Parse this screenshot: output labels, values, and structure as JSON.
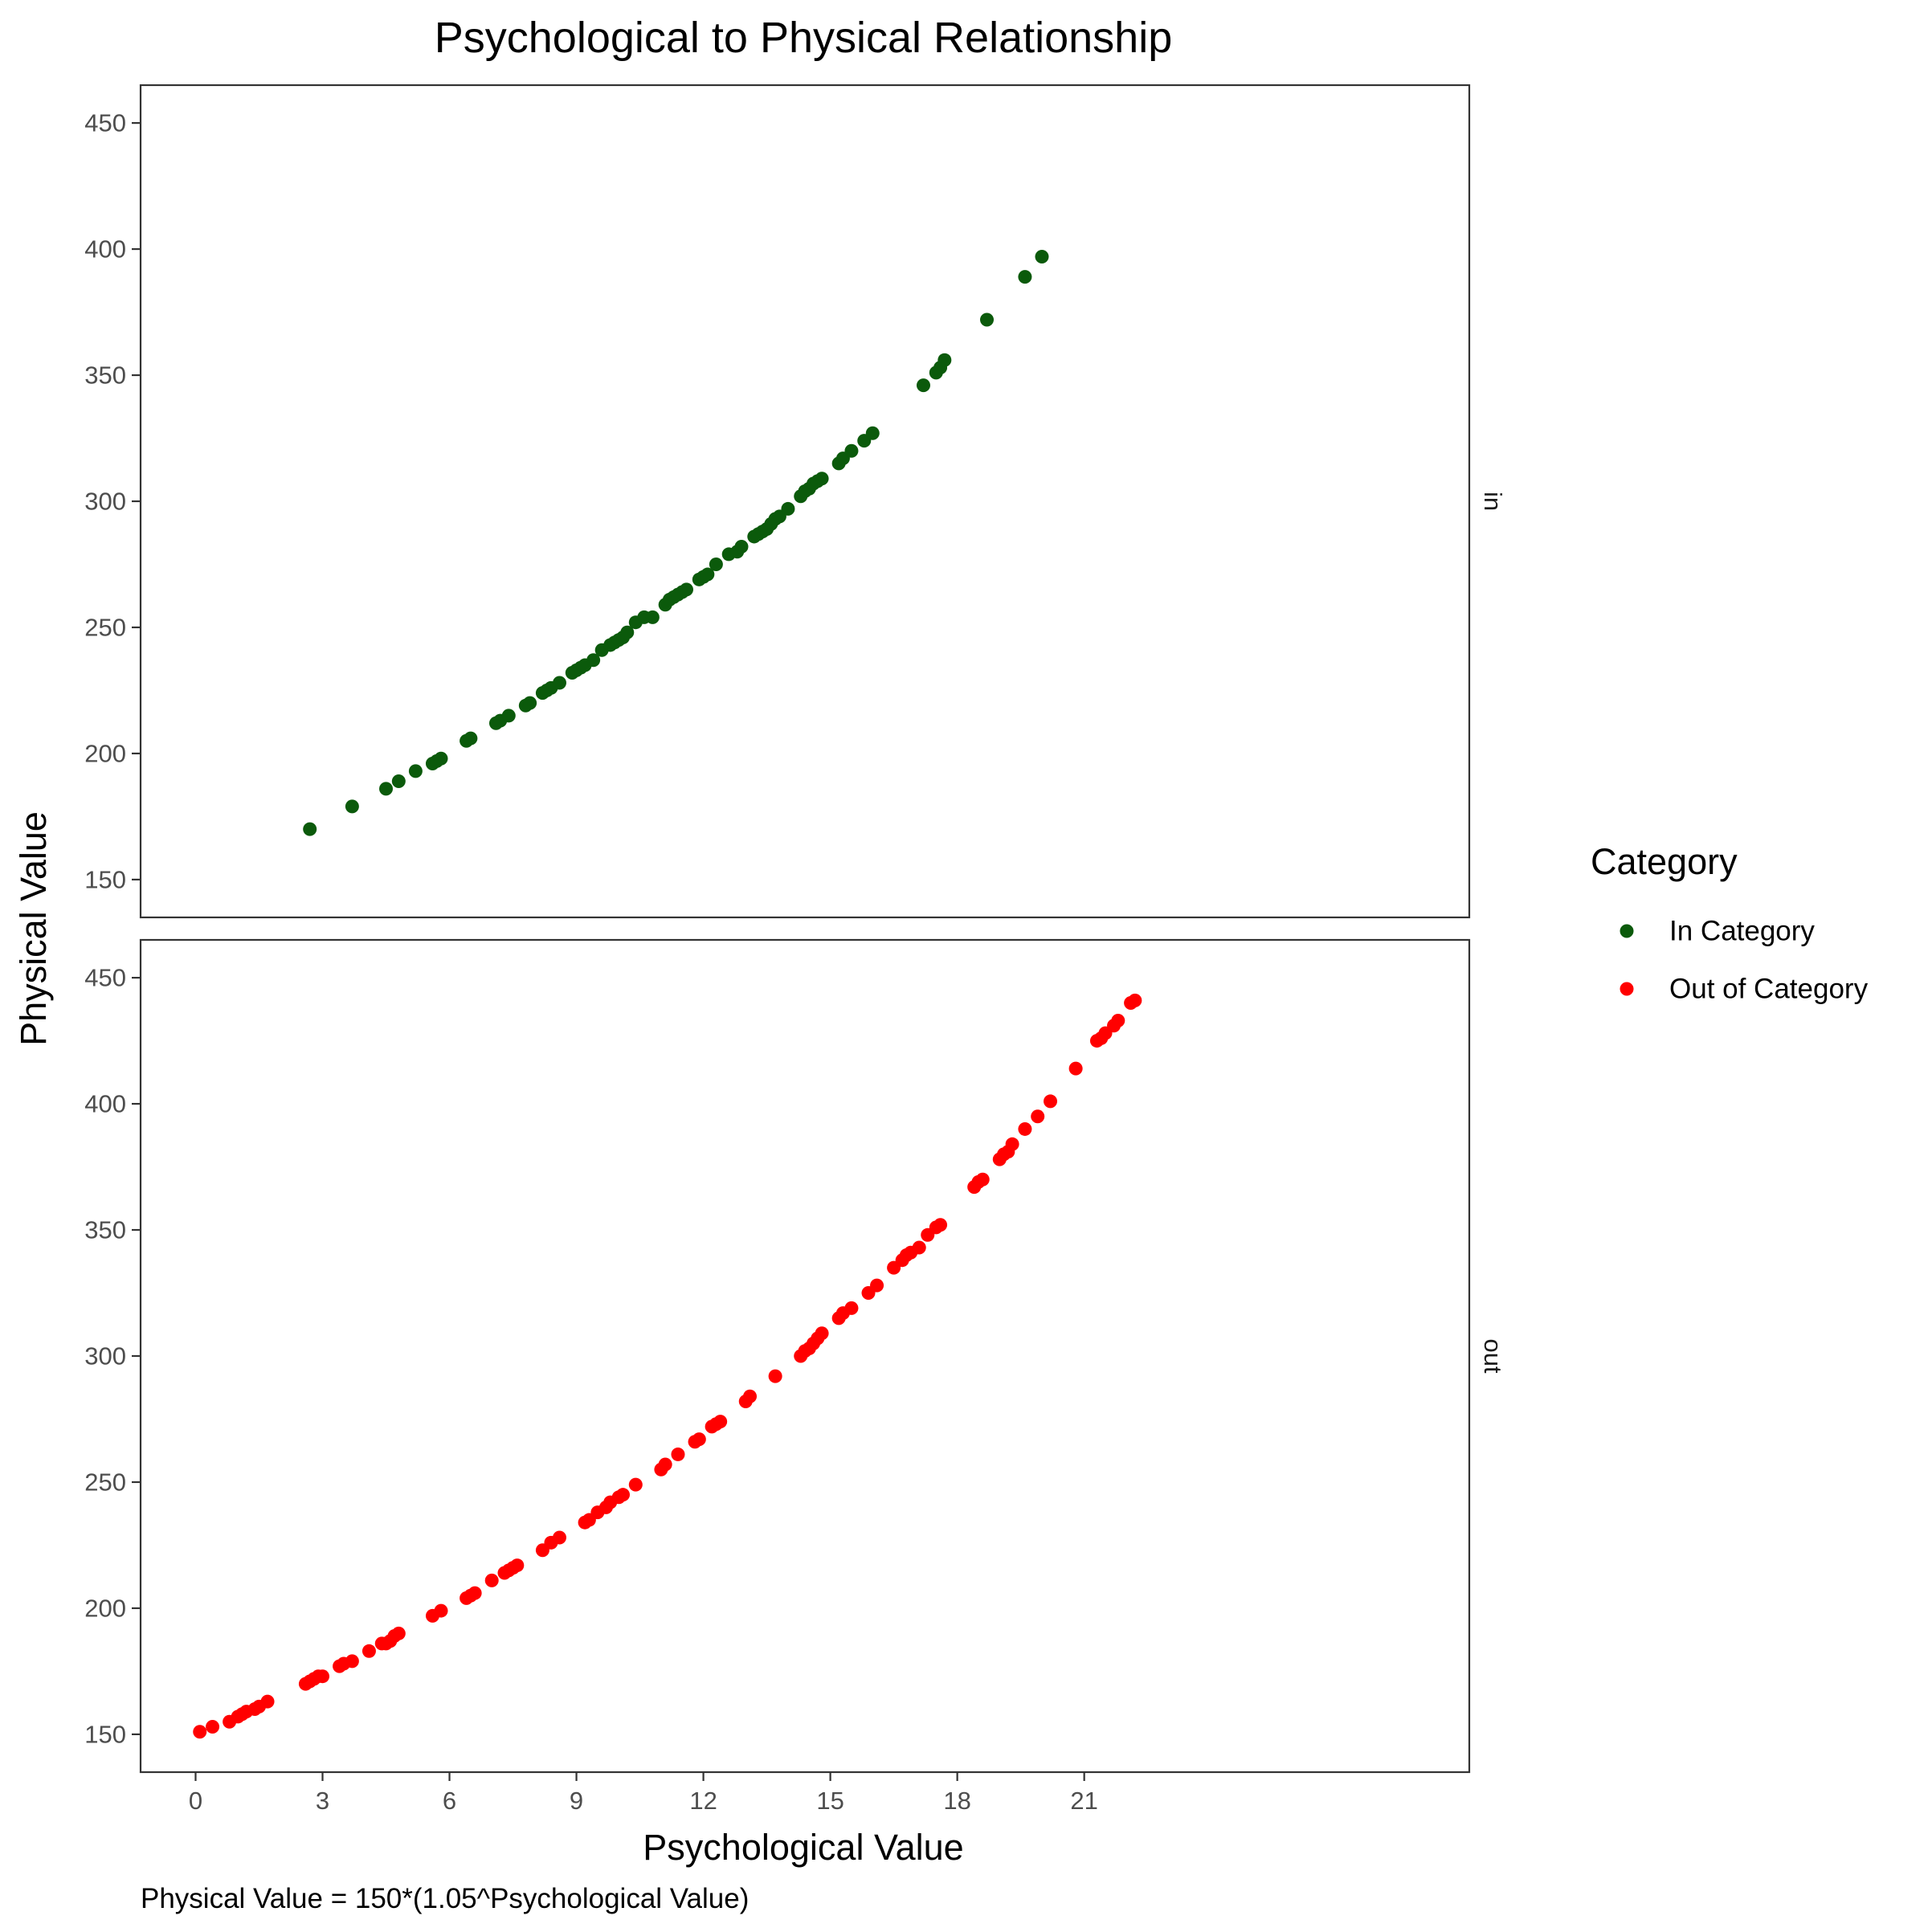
{
  "chart_data": {
    "type": "scatter",
    "title": "Psychological to Physical Relationship",
    "xlabel": "Psychological Value",
    "ylabel": "Physical Value",
    "caption": "Physical Value = 150*(1.05^Psychological Value)",
    "xlim": [
      -1.3,
      30.1
    ],
    "ylim": [
      135,
      465
    ],
    "x_ticks": [
      0,
      3,
      6,
      9,
      12,
      15,
      18,
      21
    ],
    "y_ticks": [
      150,
      200,
      250,
      300,
      350,
      400,
      450
    ],
    "grid": false,
    "legend": {
      "title": "Category",
      "position": "right",
      "entries": [
        {
          "label": "In Category",
          "color": "#0B5A0B"
        },
        {
          "label": "Out of Category",
          "color": "#FF0000"
        }
      ]
    },
    "facets": [
      {
        "strip_label": "in",
        "series_legend_label": "In Category",
        "color": "#0B5A0B",
        "x": [
          2.7,
          3.7,
          4.5,
          4.8,
          5.2,
          5.6,
          5.7,
          5.8,
          6.4,
          6.5,
          7.1,
          7.2,
          7.4,
          7.8,
          7.9,
          8.2,
          8.3,
          8.4,
          8.6,
          8.9,
          9.0,
          9.1,
          9.2,
          9.4,
          9.6,
          9.8,
          9.9,
          10.0,
          10.1,
          10.2,
          10.4,
          10.6,
          10.8,
          11.1,
          11.2,
          11.3,
          11.4,
          11.5,
          11.6,
          11.9,
          12.0,
          12.1,
          12.3,
          12.6,
          12.8,
          12.9,
          13.2,
          13.3,
          13.4,
          13.5,
          13.6,
          13.7,
          13.8,
          14.0,
          14.3,
          14.4,
          14.5,
          14.6,
          14.7,
          14.8,
          15.2,
          15.3,
          15.5,
          15.8,
          16.0,
          17.2,
          17.5,
          17.6,
          17.7,
          18.7,
          19.6,
          20.0
        ],
        "y": [
          170,
          179,
          186,
          189,
          193,
          196,
          197,
          198,
          205,
          206,
          212,
          213,
          215,
          219,
          220,
          224,
          225,
          226,
          228,
          232,
          233,
          234,
          235,
          237,
          241,
          243,
          244,
          245,
          246,
          248,
          252,
          254,
          254,
          259,
          261,
          262,
          263,
          264,
          265,
          269,
          270,
          271,
          275,
          279,
          280,
          282,
          286,
          287,
          288,
          289,
          291,
          293,
          294,
          297,
          302,
          304,
          305,
          307,
          308,
          309,
          315,
          317,
          320,
          324,
          327,
          346,
          351,
          353,
          356,
          372,
          389,
          397
        ]
      },
      {
        "strip_label": "out",
        "series_legend_label": "Out of Category",
        "color": "#FF0000",
        "x": [
          0.1,
          0.4,
          0.8,
          1.0,
          1.1,
          1.2,
          1.4,
          1.5,
          1.7,
          2.6,
          2.7,
          2.8,
          2.9,
          3.0,
          3.4,
          3.5,
          3.7,
          4.1,
          4.4,
          4.5,
          4.6,
          4.7,
          4.8,
          5.6,
          5.8,
          6.4,
          6.5,
          6.6,
          7.0,
          7.3,
          7.4,
          7.5,
          7.6,
          8.2,
          8.4,
          8.6,
          9.2,
          9.3,
          9.5,
          9.7,
          9.8,
          10.0,
          10.1,
          10.4,
          11.0,
          11.1,
          11.4,
          11.8,
          11.9,
          12.2,
          12.3,
          12.4,
          13.0,
          13.1,
          13.7,
          14.3,
          14.4,
          14.5,
          14.6,
          14.7,
          14.8,
          15.2,
          15.3,
          15.5,
          15.9,
          16.1,
          16.5,
          16.7,
          16.8,
          16.9,
          17.1,
          17.3,
          17.5,
          17.6,
          18.4,
          18.5,
          18.6,
          19.0,
          19.1,
          19.2,
          19.3,
          19.6,
          19.9,
          20.2,
          20.8,
          21.3,
          21.4,
          21.5,
          21.7,
          21.8,
          22.1,
          22.2
        ],
        "y": [
          151,
          153,
          155,
          157,
          158,
          159,
          160,
          161,
          163,
          170,
          171,
          172,
          173,
          173,
          177,
          178,
          179,
          183,
          186,
          186,
          187,
          189,
          190,
          197,
          199,
          204,
          205,
          206,
          211,
          214,
          215,
          216,
          217,
          223,
          226,
          228,
          234,
          235,
          238,
          240,
          242,
          244,
          245,
          249,
          255,
          257,
          261,
          266,
          267,
          272,
          273,
          274,
          282,
          284,
          292,
          300,
          302,
          303,
          305,
          307,
          309,
          315,
          317,
          319,
          325,
          328,
          335,
          338,
          340,
          341,
          343,
          348,
          351,
          352,
          367,
          369,
          370,
          378,
          380,
          381,
          384,
          390,
          395,
          401,
          414,
          425,
          426,
          428,
          431,
          433,
          440,
          441
        ]
      }
    ]
  }
}
